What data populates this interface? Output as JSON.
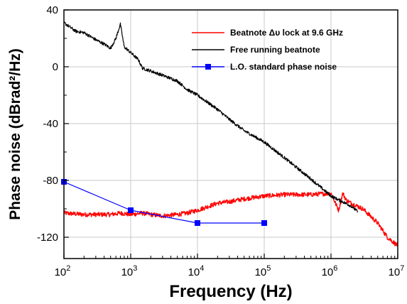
{
  "chart_data": {
    "type": "line",
    "title": "",
    "xlabel": "Frequency (Hz)",
    "ylabel": "Phase noise (dBrad²/Hz)",
    "xscale": "log",
    "xlim": [
      100,
      10000000
    ],
    "ylim": [
      -135,
      40
    ],
    "grid": true,
    "legend_position": "top-right",
    "x_ticks": [
      {
        "base": "10",
        "exp": "2"
      },
      {
        "base": "10",
        "exp": "3"
      },
      {
        "base": "10",
        "exp": "4"
      },
      {
        "base": "10",
        "exp": "5"
      },
      {
        "base": "10",
        "exp": "6"
      },
      {
        "base": "10",
        "exp": "7"
      }
    ],
    "y_ticks": [
      40,
      0,
      -40,
      -80,
      -120
    ],
    "y_tick_labels": [
      "40",
      "0",
      "-40",
      "-80",
      "-120"
    ],
    "series": [
      {
        "name": "Beatnote Δυ lock at 9.6 GHz",
        "color": "#ff0000",
        "noisy": true,
        "x": [
          100,
          200,
          300,
          500,
          700,
          1000,
          1500,
          2000,
          3000,
          5000,
          7000,
          10000,
          20000,
          30000,
          50000,
          100000,
          200000,
          500000,
          1000000,
          1300000,
          1500000,
          1700000,
          2000000,
          3000000,
          5000000,
          7000000,
          10000000
        ],
        "y": [
          -103,
          -104,
          -104,
          -104,
          -103,
          -104,
          -103,
          -104,
          -105,
          -104,
          -103,
          -101,
          -96,
          -95,
          -93,
          -91,
          -90,
          -90,
          -89,
          -101,
          -89,
          -94,
          -96,
          -100,
          -110,
          -120,
          -126
        ]
      },
      {
        "name": "Free running beatnote",
        "color": "#000000",
        "noisy": true,
        "x": [
          100,
          150,
          200,
          300,
          400,
          500,
          600,
          700,
          800,
          1000,
          1300,
          1500,
          2000,
          3000,
          5000,
          7000,
          10000,
          20000,
          30000,
          50000,
          100000,
          200000,
          500000,
          1000000,
          2000000,
          2500000
        ],
        "y": [
          31,
          25,
          24,
          19,
          16,
          13,
          20,
          30,
          14,
          10,
          5,
          -1,
          -3,
          -6,
          -10,
          -16,
          -20,
          -30,
          -37,
          -45,
          -53,
          -64,
          -79,
          -91,
          -98,
          -102
        ]
      },
      {
        "name": "L.O. standard phase noise",
        "color": "#0000ff",
        "noisy": false,
        "marker": "square",
        "x": [
          100,
          1000,
          10000,
          100000
        ],
        "y": [
          -81,
          -101,
          -110,
          -110
        ]
      }
    ]
  }
}
